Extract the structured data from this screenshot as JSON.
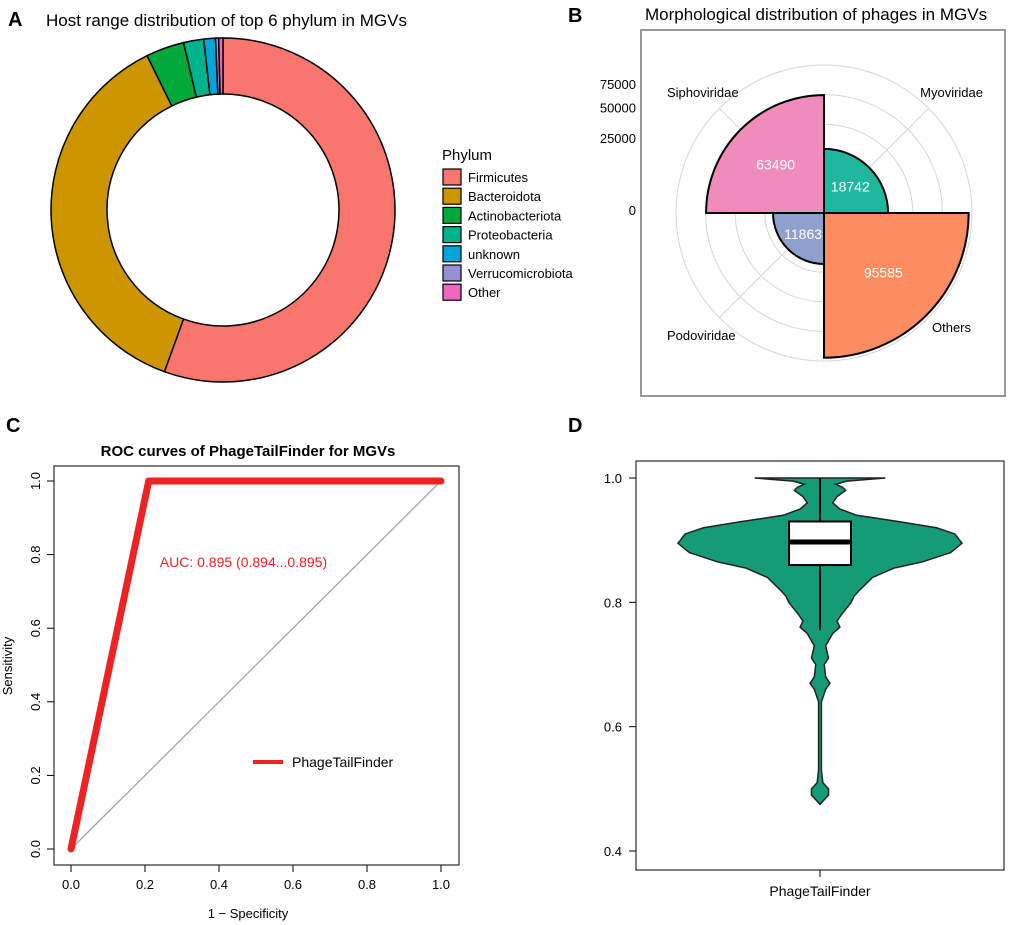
{
  "panels": {
    "a": {
      "letter": "A",
      "title": "Host range distribution of top 6 phylum in MGVs"
    },
    "b": {
      "letter": "B",
      "title": "Morphological distribution of phages in MGVs"
    },
    "c": {
      "letter": "C"
    },
    "d": {
      "letter": "D"
    }
  },
  "chart_data": [
    {
      "type": "pie",
      "variant": "donut",
      "title": "Host range distribution of top 6 phylum in MGVs",
      "legend_title": "Phylum",
      "legend_position": "right",
      "categories": [
        "Firmicutes",
        "Bacteroidota",
        "Actinobacteriota",
        "Proteobacteria",
        "unknown",
        "Verrucomicrobiota",
        "Other"
      ],
      "values": [
        0.557,
        0.373,
        0.036,
        0.019,
        0.011,
        0.003,
        0.004
      ],
      "colors": [
        "#F8766D",
        "#CD9600",
        "#00A93A",
        "#00B38A",
        "#00A5D9",
        "#9590D6",
        "#EF67C0"
      ]
    },
    {
      "type": "bar",
      "variant": "polar",
      "title": "Morphological distribution of phages in MGVs",
      "categories": [
        "Myoviridae",
        "Siphoviridae",
        "Podoviridae",
        "Others"
      ],
      "values": [
        18742,
        63490,
        11863,
        95585
      ],
      "value_labels": [
        "18742",
        "63490",
        "11863",
        "95585"
      ],
      "colors": [
        "#1FB89E",
        "#F08CBC",
        "#8EA0CB",
        "#FC8D62"
      ],
      "radial_ticks": [
        "75000",
        "50000",
        "25000",
        "0"
      ],
      "radial_tick_values": [
        75000,
        50000,
        25000,
        0
      ],
      "rmax": 100000
    },
    {
      "type": "line",
      "title": "ROC curves of PhageTailFinder for MGVs",
      "xlabel": "1 − Specificity",
      "ylabel": "Sensitivity",
      "xlim": [
        0,
        1
      ],
      "ylim": [
        0,
        1
      ],
      "xticks": [
        "0.0",
        "0.2",
        "0.4",
        "0.6",
        "0.8",
        "1.0"
      ],
      "yticks": [
        "0.0",
        "0.2",
        "0.4",
        "0.6",
        "0.8",
        "1.0"
      ],
      "series": [
        {
          "name": "PhageTailFinder",
          "color": "#EE2222",
          "x": [
            0,
            0.21,
            1
          ],
          "y": [
            0,
            1,
            1
          ]
        },
        {
          "name": "reference",
          "color": "#A6A6A6",
          "x": [
            0,
            1
          ],
          "y": [
            0,
            1
          ]
        }
      ],
      "annotation": "AUC: 0.895 (0.894...0.895)",
      "annotation_at": [
        0.24,
        0.78
      ],
      "legend": [
        "PhageTailFinder"
      ],
      "legend_position": "bottom-right"
    },
    {
      "type": "violin",
      "categories": [
        "PhageTailFinder"
      ],
      "ylim": [
        0.4,
        1.0
      ],
      "yticks": [
        "0.4",
        "0.6",
        "0.8",
        "1.0"
      ],
      "color": "#159B78",
      "box": {
        "q1": 0.86,
        "median": 0.897,
        "q3": 0.93,
        "whisker_low": 0.755,
        "whisker_high": 1.0
      },
      "density": [
        [
          0.48,
          0.02
        ],
        [
          0.49,
          0.06
        ],
        [
          0.5,
          0.06
        ],
        [
          0.51,
          0.02
        ],
        [
          0.53,
          0.01
        ],
        [
          0.6,
          0.01
        ],
        [
          0.64,
          0.01
        ],
        [
          0.66,
          0.04
        ],
        [
          0.67,
          0.07
        ],
        [
          0.68,
          0.04
        ],
        [
          0.7,
          0.03
        ],
        [
          0.71,
          0.06
        ],
        [
          0.72,
          0.05
        ],
        [
          0.73,
          0.04
        ],
        [
          0.75,
          0.09
        ],
        [
          0.76,
          0.14
        ],
        [
          0.77,
          0.12
        ],
        [
          0.78,
          0.15
        ],
        [
          0.8,
          0.22
        ],
        [
          0.81,
          0.24
        ],
        [
          0.82,
          0.28
        ],
        [
          0.84,
          0.37
        ],
        [
          0.855,
          0.52
        ],
        [
          0.865,
          0.72
        ],
        [
          0.88,
          0.92
        ],
        [
          0.895,
          1.0
        ],
        [
          0.91,
          0.95
        ],
        [
          0.92,
          0.82
        ],
        [
          0.93,
          0.55
        ],
        [
          0.94,
          0.26
        ],
        [
          0.95,
          0.14
        ],
        [
          0.96,
          0.09
        ],
        [
          0.97,
          0.12
        ],
        [
          0.98,
          0.18
        ],
        [
          0.985,
          0.16
        ],
        [
          0.99,
          0.11
        ],
        [
          0.995,
          0.19
        ],
        [
          1.0,
          0.46
        ]
      ]
    }
  ]
}
